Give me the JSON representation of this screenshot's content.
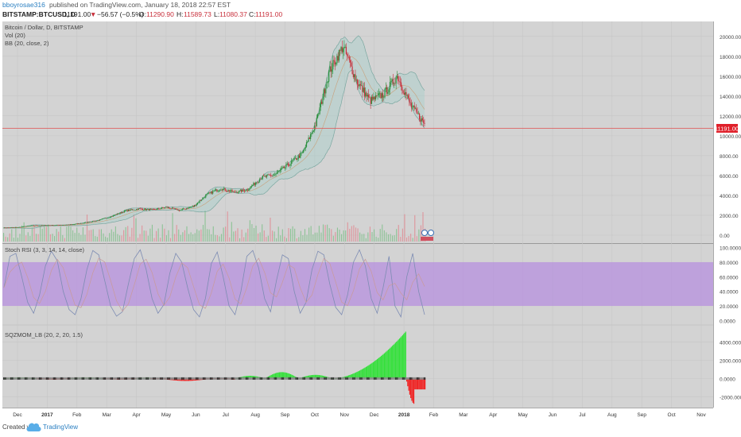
{
  "header": {
    "author": "bboyrosae316",
    "published": " published on TradingView.com, January 18, 2018 22:57 EST",
    "symbol": "BITSTAMP:BTCUSD, D",
    "last": "11191.00",
    "change_arrow": "▼",
    "change": "−56.57 (−0.5%)",
    "open_label": "O:",
    "open": "11290.90",
    "high_label": "H:",
    "high": "11589.73",
    "low_label": "L:",
    "low": "11080.37",
    "close_label": "C:",
    "close": "11191.00"
  },
  "legend": {
    "main": "Bitcoin / Dollar, D, BITSTAMP",
    "vol": "Vol (20)",
    "bb": "BB (20, close, 2)",
    "stoch": "Stoch RSI (3, 3, 14, 14, close)",
    "mom": "SQZMOM_LB (20, 2, 20, 1.5)"
  },
  "price_tag": "11191.00",
  "footer": {
    "created_with": "Created with",
    "brand": "TradingView"
  },
  "colors": {
    "up": "#2a8f3a",
    "down": "#c8303c",
    "stoch_band": "#b58be0",
    "mom_pos": "#33e03a",
    "mom_neg": "#f02020",
    "pane_bg": "#d3d3d3",
    "price_line": "#e05050"
  },
  "chart_data": [
    {
      "type": "candlestick",
      "title": "Bitcoin / Dollar, D, BITSTAMP",
      "y_ticks": [
        "20000.00",
        "18000.00",
        "16000.00",
        "14000.00",
        "12000.00",
        "10000.00",
        "8000.00",
        "6000.00",
        "4000.00",
        "2000.00",
        "0.00"
      ],
      "ylim": [
        -800,
        21500
      ],
      "x_ticks": [
        "Dec",
        "2017",
        "Feb",
        "Mar",
        "Apr",
        "May",
        "Jun",
        "Jul",
        "Aug",
        "Sep",
        "Oct",
        "Nov",
        "Dec",
        "2018",
        "Feb",
        "Mar",
        "Apr",
        "May",
        "Jun",
        "Jul",
        "Aug",
        "Sep",
        "Oct",
        "Nov"
      ],
      "close_points": [
        [
          0,
          740
        ],
        [
          1,
          760
        ],
        [
          2,
          960
        ],
        [
          3,
          980
        ],
        [
          4,
          1000
        ],
        [
          5,
          1060
        ],
        [
          6,
          1250
        ],
        [
          7,
          1480
        ],
        [
          8,
          1900
        ],
        [
          9,
          2450
        ],
        [
          10,
          2650
        ],
        [
          11,
          2550
        ],
        [
          12,
          2800
        ],
        [
          13,
          2500
        ],
        [
          14,
          2900
        ],
        [
          15,
          4100
        ],
        [
          16,
          4700
        ],
        [
          17,
          4300
        ],
        [
          18,
          4600
        ],
        [
          19,
          5800
        ],
        [
          20,
          6100
        ],
        [
          21,
          7100
        ],
        [
          22,
          8200
        ],
        [
          23,
          11200
        ],
        [
          24,
          16500
        ],
        [
          25,
          19000
        ],
        [
          26,
          15500
        ],
        [
          27,
          13500
        ],
        [
          28,
          14200
        ],
        [
          29,
          16000
        ],
        [
          30,
          13000
        ],
        [
          31,
          11191
        ]
      ],
      "last_price": 11191
    },
    {
      "type": "line",
      "title": "Stoch RSI (3, 3, 14, 14, close)",
      "y_ticks": [
        "100.0000",
        "80.0000",
        "60.0000",
        "40.0000",
        "20.0000",
        "0.0000"
      ],
      "ylim": [
        -5,
        105
      ],
      "band": [
        20,
        80
      ],
      "k_values": [
        45,
        88,
        92,
        60,
        25,
        10,
        35,
        75,
        95,
        82,
        40,
        15,
        8,
        30,
        70,
        96,
        90,
        55,
        20,
        6,
        12,
        50,
        85,
        97,
        70,
        30,
        10,
        22,
        65,
        92,
        80,
        45,
        15,
        5,
        30,
        78,
        94,
        60,
        20,
        8,
        40,
        88,
        96,
        72,
        30,
        12,
        55,
        90,
        85,
        40,
        10,
        25,
        70,
        95,
        90,
        50,
        18,
        8,
        35,
        80,
        97,
        75,
        30,
        10,
        45,
        88,
        20,
        5,
        60,
        92,
        40,
        8
      ]
    },
    {
      "type": "bar",
      "title": "SQZMOM_LB (20, 2, 20, 1.5)",
      "y_ticks": [
        "4000.0000",
        "2000.0000",
        "0.0000",
        "-2000.0000"
      ],
      "ylim": [
        -3200,
        5800
      ]
    }
  ]
}
